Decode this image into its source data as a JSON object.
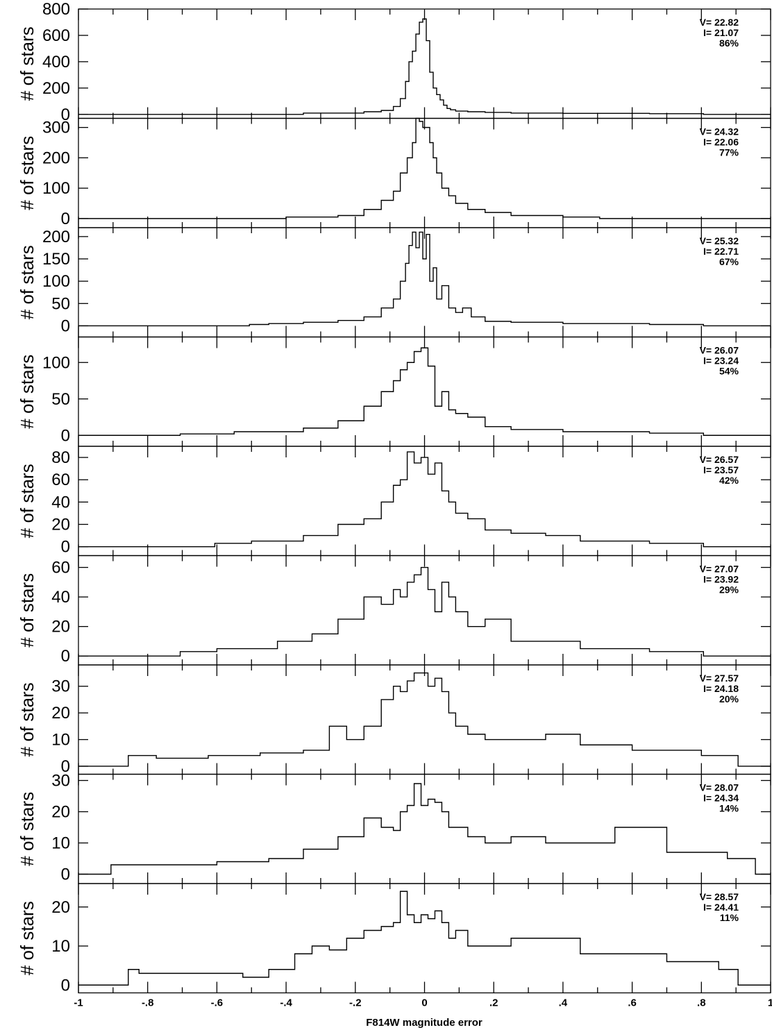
{
  "chart_data": [
    {
      "type": "bar",
      "ylabel": "# of stars",
      "xlabel": "",
      "xlim": [
        -1,
        1
      ],
      "ylim": [
        -30,
        800
      ],
      "yticks": [
        0,
        200,
        400,
        600,
        800
      ],
      "annotations": [
        "V=  22.82",
        "I=  21.07",
        "86%"
      ],
      "x": [
        -0.5,
        -0.2,
        -0.15,
        -0.1,
        -0.08,
        -0.06,
        -0.05,
        -0.04,
        -0.03,
        -0.02,
        -0.01,
        0,
        0.01,
        0.02,
        0.03,
        0.04,
        0.05,
        0.06,
        0.07,
        0.08,
        0.1,
        0.15,
        0.2,
        0.3,
        0.5,
        0.8
      ],
      "values": [
        0,
        10,
        20,
        30,
        60,
        120,
        250,
        400,
        480,
        610,
        700,
        725,
        560,
        320,
        200,
        150,
        110,
        70,
        45,
        35,
        25,
        20,
        15,
        10,
        8,
        5
      ]
    },
    {
      "type": "bar",
      "ylabel": "# of stars",
      "xlabel": "",
      "xlim": [
        -1,
        1
      ],
      "ylim": [
        -30,
        330
      ],
      "yticks": [
        0,
        100,
        200,
        300
      ],
      "annotations": [
        "V=  24.32",
        "I=  22.06",
        "77%"
      ],
      "x": [
        -0.5,
        -0.3,
        -0.2,
        -0.15,
        -0.1,
        -0.08,
        -0.06,
        -0.04,
        -0.03,
        -0.02,
        -0.01,
        0,
        0.01,
        0.02,
        0.03,
        0.04,
        0.06,
        0.08,
        0.1,
        0.15,
        0.2,
        0.3,
        0.5
      ],
      "values": [
        0,
        5,
        10,
        30,
        60,
        90,
        150,
        200,
        250,
        330,
        320,
        300,
        300,
        250,
        200,
        150,
        100,
        75,
        50,
        30,
        20,
        10,
        5
      ]
    },
    {
      "type": "bar",
      "ylabel": "# of stars",
      "xlabel": "",
      "xlim": [
        -1,
        1
      ],
      "ylim": [
        -25,
        220
      ],
      "yticks": [
        0,
        50,
        100,
        150,
        200
      ],
      "annotations": [
        "V=  25.32",
        "I=  22.71",
        "67%"
      ],
      "x": [
        -0.5,
        -0.4,
        -0.3,
        -0.2,
        -0.15,
        -0.1,
        -0.08,
        -0.06,
        -0.05,
        -0.04,
        -0.03,
        -0.02,
        -0.01,
        0,
        0.01,
        0.02,
        0.03,
        0.04,
        0.06,
        0.08,
        0.1,
        0.12,
        0.15,
        0.2,
        0.3,
        0.5,
        0.8
      ],
      "values": [
        3,
        5,
        8,
        12,
        20,
        40,
        60,
        100,
        140,
        180,
        210,
        175,
        210,
        150,
        205,
        100,
        130,
        60,
        90,
        40,
        30,
        40,
        20,
        10,
        8,
        5,
        3
      ]
    },
    {
      "type": "bar",
      "ylabel": "# of stars",
      "xlabel": "",
      "xlim": [
        -1,
        1
      ],
      "ylim": [
        -15,
        135
      ],
      "yticks": [
        0,
        50,
        100
      ],
      "annotations": [
        "V=  26.07",
        "I=  23.24",
        "54%"
      ],
      "x": [
        -0.7,
        -0.4,
        -0.3,
        -0.2,
        -0.15,
        -0.1,
        -0.08,
        -0.06,
        -0.04,
        -0.02,
        0,
        0.02,
        0.04,
        0.06,
        0.08,
        0.1,
        0.15,
        0.2,
        0.3,
        0.5,
        0.8
      ],
      "values": [
        2,
        5,
        10,
        20,
        40,
        60,
        75,
        90,
        100,
        115,
        120,
        95,
        40,
        60,
        35,
        30,
        25,
        12,
        8,
        5,
        3
      ]
    },
    {
      "type": "bar",
      "ylabel": "# of stars",
      "xlabel": "",
      "xlim": [
        -1,
        1
      ],
      "ylim": [
        -8,
        90
      ],
      "yticks": [
        0,
        20,
        40,
        60,
        80
      ],
      "annotations": [
        "V=  26.57",
        "I=  23.57",
        "42%"
      ],
      "x": [
        -0.6,
        -0.4,
        -0.3,
        -0.2,
        -0.15,
        -0.1,
        -0.08,
        -0.06,
        -0.04,
        -0.02,
        0,
        0.02,
        0.04,
        0.06,
        0.08,
        0.1,
        0.15,
        0.2,
        0.3,
        0.4,
        0.5,
        0.8
      ],
      "values": [
        3,
        5,
        10,
        20,
        25,
        40,
        55,
        60,
        85,
        75,
        80,
        65,
        75,
        50,
        40,
        30,
        25,
        15,
        12,
        10,
        5,
        3
      ]
    },
    {
      "type": "bar",
      "ylabel": "# of stars",
      "xlabel": "",
      "xlim": [
        -1,
        1
      ],
      "ylim": [
        -6,
        68
      ],
      "yticks": [
        0,
        20,
        40,
        60
      ],
      "annotations": [
        "V=  27.07",
        "I=  23.92",
        "29%"
      ],
      "x": [
        -0.7,
        -0.5,
        -0.35,
        -0.3,
        -0.2,
        -0.15,
        -0.1,
        -0.08,
        -0.06,
        -0.04,
        -0.02,
        0,
        0.02,
        0.04,
        0.06,
        0.08,
        0.1,
        0.15,
        0.2,
        0.3,
        0.4,
        0.5,
        0.8
      ],
      "values": [
        3,
        5,
        10,
        15,
        25,
        40,
        35,
        45,
        40,
        50,
        55,
        60,
        45,
        30,
        50,
        40,
        30,
        20,
        25,
        10,
        10,
        5,
        3
      ]
    },
    {
      "type": "bar",
      "ylabel": "# of stars",
      "xlabel": "",
      "xlim": [
        -1,
        1
      ],
      "ylim": [
        -3,
        38
      ],
      "yticks": [
        0,
        10,
        20,
        30
      ],
      "annotations": [
        "V=  27.57",
        "I=  24.18",
        "20%"
      ],
      "x": [
        -0.85,
        -0.7,
        -0.55,
        -0.4,
        -0.3,
        -0.25,
        -0.2,
        -0.15,
        -0.1,
        -0.08,
        -0.06,
        -0.04,
        -0.02,
        0,
        0.02,
        0.04,
        0.06,
        0.08,
        0.1,
        0.15,
        0.2,
        0.3,
        0.4,
        0.5,
        0.7,
        0.9
      ],
      "values": [
        4,
        3,
        4,
        5,
        6,
        15,
        10,
        15,
        25,
        30,
        28,
        32,
        35,
        35,
        30,
        33,
        28,
        20,
        15,
        12,
        10,
        10,
        12,
        8,
        6,
        4
      ]
    },
    {
      "type": "bar",
      "ylabel": "# of stars",
      "xlabel": "",
      "xlim": [
        -1,
        1
      ],
      "ylim": [
        -3,
        32
      ],
      "yticks": [
        0,
        10,
        20,
        30
      ],
      "annotations": [
        "V=  28.07",
        "I=  24.34",
        "14%"
      ],
      "x": [
        -0.9,
        -0.7,
        -0.5,
        -0.4,
        -0.3,
        -0.2,
        -0.15,
        -0.1,
        -0.08,
        -0.06,
        -0.04,
        -0.02,
        0,
        0.02,
        0.04,
        0.06,
        0.08,
        0.1,
        0.15,
        0.2,
        0.3,
        0.4,
        0.5,
        0.6,
        0.8,
        0.95
      ],
      "values": [
        3,
        3,
        4,
        5,
        8,
        12,
        18,
        15,
        14,
        20,
        22,
        29,
        22,
        24,
        23,
        20,
        15,
        15,
        12,
        10,
        12,
        10,
        10,
        15,
        7,
        5
      ]
    },
    {
      "type": "bar",
      "ylabel": "# of stars",
      "xlabel": "F814W magnitude error",
      "xlim": [
        -1,
        1
      ],
      "ylim": [
        -2,
        26
      ],
      "yticks": [
        0,
        10,
        20
      ],
      "annotations": [
        "V=  28.57",
        "I=  24.41",
        "11%"
      ],
      "x": [
        -0.85,
        -0.8,
        -0.55,
        -0.5,
        -0.4,
        -0.35,
        -0.3,
        -0.25,
        -0.2,
        -0.15,
        -0.1,
        -0.08,
        -0.06,
        -0.04,
        -0.02,
        0,
        0.02,
        0.04,
        0.06,
        0.08,
        0.1,
        0.15,
        0.2,
        0.3,
        0.4,
        0.5,
        0.6,
        0.8,
        0.9
      ],
      "values": [
        4,
        3,
        3,
        2,
        4,
        8,
        10,
        9,
        12,
        14,
        15,
        16,
        24,
        18,
        16,
        18,
        17,
        19,
        16,
        12,
        14,
        10,
        10,
        12,
        12,
        8,
        8,
        6,
        4
      ],
      "xticks": [
        "-1",
        "-.8",
        "-.6",
        "-.4",
        "-.2",
        "0",
        ".2",
        ".4",
        ".6",
        ".8",
        "1"
      ]
    }
  ]
}
